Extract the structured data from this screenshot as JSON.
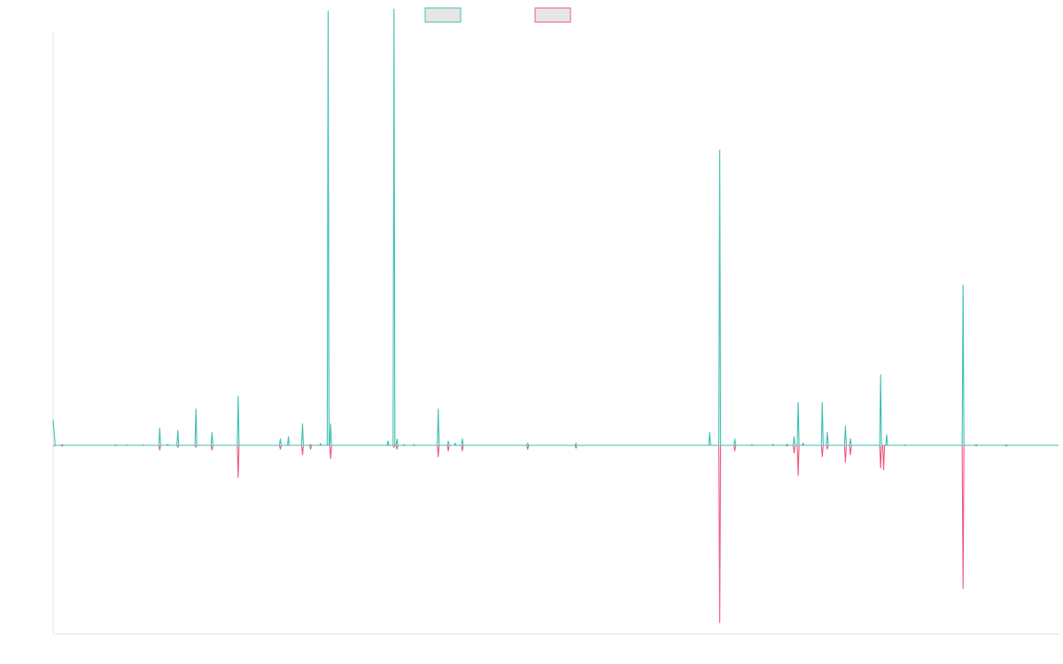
{
  "chart_data": {
    "type": "line",
    "title": "",
    "xlabel": "",
    "ylabel": "",
    "grid": false,
    "legend": "top-center",
    "xlim": [
      0,
      1000
    ],
    "ylim": [
      -1.0,
      2.0
    ],
    "series": [
      {
        "name": "",
        "color": "#3dbfb0",
        "legend_fill": "#e6e6e6",
        "points": [
          [
            0,
            0.12
          ],
          [
            2,
            0
          ],
          [
            9,
            0.004
          ],
          [
            62,
            0.002
          ],
          [
            74,
            0.002
          ],
          [
            90,
            0.003
          ],
          [
            106,
            0.08
          ],
          [
            114,
            0.005
          ],
          [
            124,
            0.07
          ],
          [
            142,
            0.17
          ],
          [
            158,
            0.06
          ],
          [
            184,
            0.23
          ],
          [
            226,
            0.03
          ],
          [
            234,
            0.04
          ],
          [
            248,
            0.1
          ],
          [
            256,
            0.005
          ],
          [
            266,
            0.008
          ],
          [
            273.5,
            2.03
          ],
          [
            276,
            0.1
          ],
          [
            333,
            0.02
          ],
          [
            339,
            2.04
          ],
          [
            342,
            0.03
          ],
          [
            349,
            0.004
          ],
          [
            359,
            0.004
          ],
          [
            383,
            0.17
          ],
          [
            393,
            0.02
          ],
          [
            400,
            0.01
          ],
          [
            407,
            0.03
          ],
          [
            472,
            0.01
          ],
          [
            520,
            0.01
          ],
          [
            653,
            0.06
          ],
          [
            663,
            1.38
          ],
          [
            678,
            0.03
          ],
          [
            695,
            0.004
          ],
          [
            716,
            0.006
          ],
          [
            730,
            0.006
          ],
          [
            737,
            0.04
          ],
          [
            741,
            0.2
          ],
          [
            746,
            0.01
          ],
          [
            765,
            0.2
          ],
          [
            770,
            0.06
          ],
          [
            788,
            0.09
          ],
          [
            793,
            0.03
          ],
          [
            823,
            0.33
          ],
          [
            829,
            0.05
          ],
          [
            847,
            0.003
          ],
          [
            905,
            0.75
          ],
          [
            918,
            0.003
          ],
          [
            948,
            0.003
          ]
        ]
      },
      {
        "name": "",
        "color": "#f0577e",
        "legend_fill": "#e6e6e6",
        "points": [
          [
            0,
            -0.004
          ],
          [
            9,
            -0.004
          ],
          [
            62,
            -0.002
          ],
          [
            106,
            -0.025
          ],
          [
            124,
            -0.01
          ],
          [
            142,
            -0.01
          ],
          [
            158,
            -0.025
          ],
          [
            184,
            -0.17
          ],
          [
            226,
            -0.02
          ],
          [
            248,
            -0.05
          ],
          [
            256,
            -0.02
          ],
          [
            276,
            -0.07
          ],
          [
            339,
            -0.01
          ],
          [
            342,
            -0.02
          ],
          [
            383,
            -0.06
          ],
          [
            393,
            -0.03
          ],
          [
            407,
            -0.03
          ],
          [
            472,
            -0.02
          ],
          [
            520,
            -0.015
          ],
          [
            678,
            -0.03
          ],
          [
            663,
            -0.94
          ],
          [
            730,
            -0.003
          ],
          [
            737,
            -0.04
          ],
          [
            741,
            -0.16
          ],
          [
            765,
            -0.06
          ],
          [
            770,
            -0.02
          ],
          [
            788,
            -0.09
          ],
          [
            793,
            -0.05
          ],
          [
            823,
            -0.12
          ],
          [
            826,
            -0.13
          ],
          [
            905,
            -0.76
          ],
          [
            918,
            -0.003
          ],
          [
            948,
            -0.003
          ]
        ]
      }
    ]
  }
}
